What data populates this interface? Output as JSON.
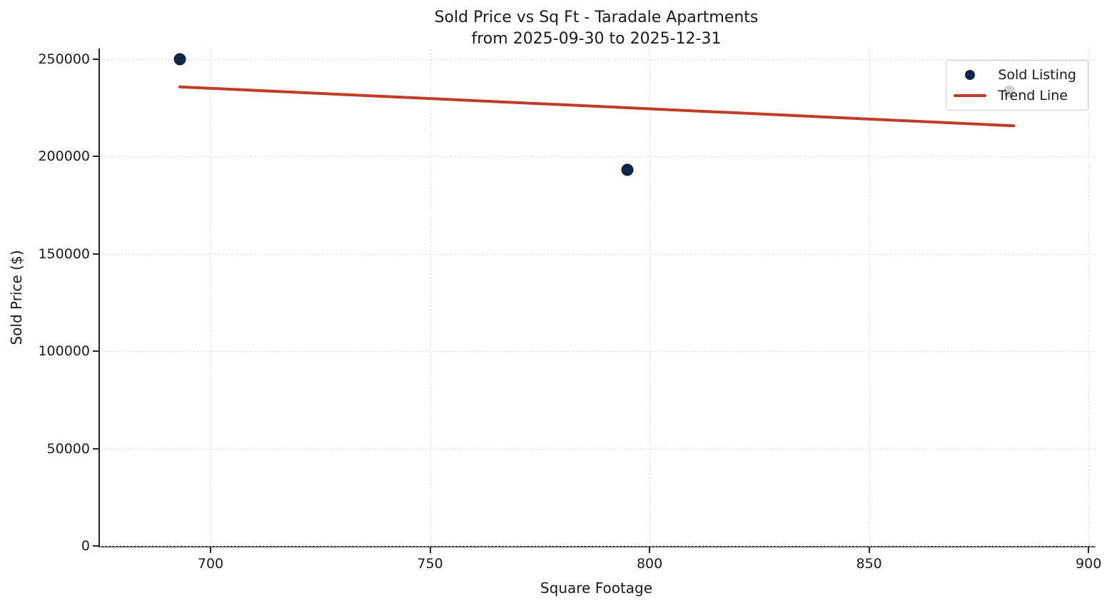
{
  "chart_data": {
    "type": "scatter",
    "title": "Sold Price vs Sq Ft - Taradale Apartments",
    "subtitle": "from 2025-09-30 to 2025-12-31",
    "xlabel": "Square Footage",
    "ylabel": "Sold Price ($)",
    "xlim": [
      674.8,
      901.6
    ],
    "ylim": [
      0,
      255500
    ],
    "x_ticks": [
      700,
      750,
      800,
      850,
      900
    ],
    "y_ticks": [
      0,
      50000,
      100000,
      150000,
      200000,
      250000
    ],
    "grid": {
      "show": true,
      "style": "dashed",
      "color": "#e2e2e2"
    },
    "legend": {
      "position": "upper-right",
      "entries": [
        {
          "label": "Sold Listing",
          "marker": "dot",
          "color": "#0e2745"
        },
        {
          "label": "Trend Line",
          "marker": "line",
          "color": "#c23b28"
        }
      ]
    },
    "series": [
      {
        "name": "Sold Listing",
        "type": "scatter",
        "color": "#0e2745",
        "points": [
          {
            "x": 693,
            "y": 250000
          },
          {
            "x": 795,
            "y": 193000
          },
          {
            "x": 882,
            "y": 233500
          }
        ]
      },
      {
        "name": "Trend Line",
        "type": "line",
        "color": "#c23b28",
        "points": [
          {
            "x": 693,
            "y": 235800
          },
          {
            "x": 883,
            "y": 215800
          }
        ]
      }
    ]
  }
}
